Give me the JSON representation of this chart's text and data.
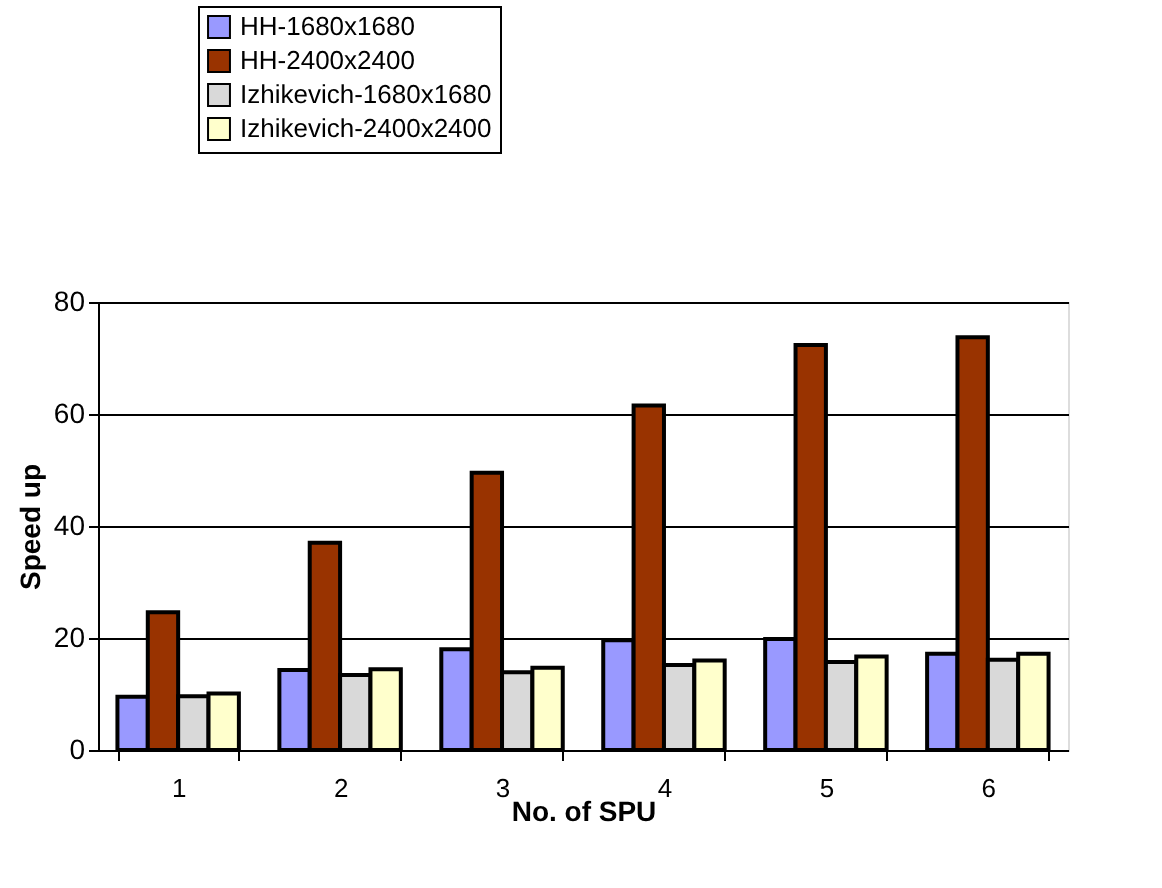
{
  "chart_data": {
    "type": "bar",
    "xlabel": "No. of SPU",
    "ylabel": "Speed up",
    "categories": [
      "1",
      "2",
      "3",
      "4",
      "5",
      "6"
    ],
    "series": [
      {
        "name": "HH-1680x1680",
        "color": "#9999ff",
        "values": [
          9.5,
          14.3,
          18,
          19.6,
          19.8,
          17.2
        ]
      },
      {
        "name": "HH-2400x2400",
        "color": "#993300",
        "values": [
          24.6,
          37,
          49.5,
          61.5,
          72.3,
          73.7
        ]
      },
      {
        "name": "Izhikevich-1680x1680",
        "color": "#d9d9d9",
        "values": [
          9.6,
          13.4,
          13.9,
          15.2,
          15.7,
          16.1
        ]
      },
      {
        "name": "Izhikevich-2400x2400",
        "color": "#ffffcc",
        "values": [
          10.1,
          14.4,
          14.7,
          16,
          16.7,
          17.2
        ]
      }
    ],
    "ylim": [
      0,
      80
    ],
    "yticks": [
      0,
      20,
      40,
      60,
      80
    ],
    "grid": "y",
    "legend": "top left"
  }
}
